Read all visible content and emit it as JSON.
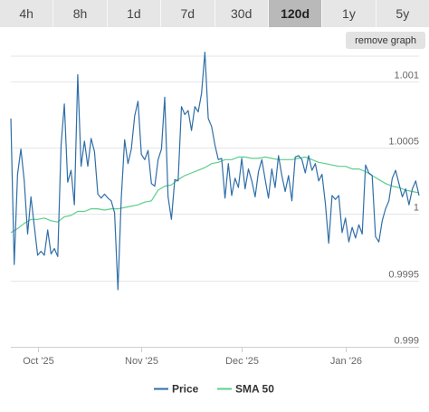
{
  "tabs": [
    {
      "label": "4h",
      "active": false
    },
    {
      "label": "8h",
      "active": false
    },
    {
      "label": "1d",
      "active": false
    },
    {
      "label": "7d",
      "active": false
    },
    {
      "label": "30d",
      "active": false
    },
    {
      "label": "120d",
      "active": true
    },
    {
      "label": "1y",
      "active": false
    },
    {
      "label": "5y",
      "active": false
    }
  ],
  "remove_graph_label": "remove graph",
  "chart_data": {
    "type": "line",
    "xlabel": "",
    "ylabel": "",
    "x_ticks": [
      {
        "label": "Oct '25",
        "date": "2025-10-01"
      },
      {
        "label": "Nov '25",
        "date": "2025-11-01"
      },
      {
        "label": "Dec '25",
        "date": "2025-12-01"
      },
      {
        "label": "Jan '26",
        "date": "2026-01-01"
      }
    ],
    "y_ticks": [
      {
        "label": "1.001",
        "value": 1.001
      },
      {
        "label": "1.0005",
        "value": 1.0005
      },
      {
        "label": "1",
        "value": 1.0
      },
      {
        "label": "0.9995",
        "value": 0.9995
      },
      {
        "label": "0.999",
        "value": 0.999
      }
    ],
    "xlim": [
      "2025-09-23",
      "2026-01-23"
    ],
    "ylim": [
      0.999,
      1.00119
    ],
    "grid": "horizontal",
    "legend_position": "bottom",
    "series": [
      {
        "name": "Price",
        "color": "#2f6ea7",
        "points": [
          [
            "2025-09-23",
            1.00072
          ],
          [
            "2025-09-24",
            0.99962
          ],
          [
            "2025-09-25",
            1.0003
          ],
          [
            "2025-09-26",
            1.00049
          ],
          [
            "2025-09-27",
            1.00025
          ],
          [
            "2025-09-28",
            0.99985
          ],
          [
            "2025-09-29",
            1.00013
          ],
          [
            "2025-09-30",
            0.99991
          ],
          [
            "2025-10-01",
            0.99969
          ],
          [
            "2025-10-02",
            0.99972
          ],
          [
            "2025-10-03",
            0.99969
          ],
          [
            "2025-10-04",
            0.99988
          ],
          [
            "2025-10-05",
            0.9997
          ],
          [
            "2025-10-06",
            0.99974
          ],
          [
            "2025-10-07",
            0.99968
          ],
          [
            "2025-10-08",
            1.00052
          ],
          [
            "2025-10-09",
            1.00083
          ],
          [
            "2025-10-10",
            1.00024
          ],
          [
            "2025-10-11",
            1.00033
          ],
          [
            "2025-10-12",
            1.00007
          ],
          [
            "2025-10-13",
            1.00105
          ],
          [
            "2025-10-14",
            1.00036
          ],
          [
            "2025-10-15",
            1.00055
          ],
          [
            "2025-10-16",
            1.00036
          ],
          [
            "2025-10-17",
            1.00057
          ],
          [
            "2025-10-18",
            1.00047
          ],
          [
            "2025-10-19",
            1.00015
          ],
          [
            "2025-10-20",
            1.00012
          ],
          [
            "2025-10-21",
            1.00015
          ],
          [
            "2025-10-22",
            1.00012
          ],
          [
            "2025-10-23",
            1.0001
          ],
          [
            "2025-10-24",
            1.00001
          ],
          [
            "2025-10-25",
            0.99943
          ],
          [
            "2025-10-26",
            1.00012
          ],
          [
            "2025-10-27",
            1.00056
          ],
          [
            "2025-10-28",
            1.00038
          ],
          [
            "2025-10-29",
            1.00049
          ],
          [
            "2025-10-30",
            1.00074
          ],
          [
            "2025-10-31",
            1.00085
          ],
          [
            "2025-11-01",
            1.00045
          ],
          [
            "2025-11-02",
            1.00041
          ],
          [
            "2025-11-03",
            1.00048
          ],
          [
            "2025-11-04",
            1.00023
          ],
          [
            "2025-11-05",
            1.00021
          ],
          [
            "2025-11-06",
            1.00041
          ],
          [
            "2025-11-07",
            1.00049
          ],
          [
            "2025-11-08",
            1.00088
          ],
          [
            "2025-11-09",
            1.00013
          ],
          [
            "2025-11-10",
            0.99996
          ],
          [
            "2025-11-11",
            1.00026
          ],
          [
            "2025-11-12",
            1.00025
          ],
          [
            "2025-11-13",
            1.00081
          ],
          [
            "2025-11-14",
            1.00075
          ],
          [
            "2025-11-15",
            1.00078
          ],
          [
            "2025-11-16",
            1.00063
          ],
          [
            "2025-11-17",
            1.00081
          ],
          [
            "2025-11-18",
            1.00077
          ],
          [
            "2025-11-19",
            1.00091
          ],
          [
            "2025-11-20",
            1.00122
          ],
          [
            "2025-11-21",
            1.00072
          ],
          [
            "2025-11-22",
            1.00066
          ],
          [
            "2025-11-23",
            1.00052
          ],
          [
            "2025-11-24",
            1.00041
          ],
          [
            "2025-11-25",
            1.00042
          ],
          [
            "2025-11-26",
            1.00012
          ],
          [
            "2025-11-27",
            1.00038
          ],
          [
            "2025-11-28",
            1.00014
          ],
          [
            "2025-11-29",
            1.00027
          ],
          [
            "2025-11-30",
            1.0002
          ],
          [
            "2025-12-01",
            1.00042
          ],
          [
            "2025-12-02",
            1.00019
          ],
          [
            "2025-12-03",
            1.00034
          ],
          [
            "2025-12-04",
            1.00025
          ],
          [
            "2025-12-05",
            1.00013
          ],
          [
            "2025-12-06",
            1.00032
          ],
          [
            "2025-12-07",
            1.00041
          ],
          [
            "2025-12-08",
            1.00026
          ],
          [
            "2025-12-09",
            1.00012
          ],
          [
            "2025-12-10",
            1.00034
          ],
          [
            "2025-12-11",
            1.0002
          ],
          [
            "2025-12-12",
            1.00044
          ],
          [
            "2025-12-13",
            1.00029
          ],
          [
            "2025-12-14",
            1.00017
          ],
          [
            "2025-12-15",
            1.00029
          ],
          [
            "2025-12-16",
            1.0001
          ],
          [
            "2025-12-17",
            1.00043
          ],
          [
            "2025-12-18",
            1.00044
          ],
          [
            "2025-12-19",
            1.00041
          ],
          [
            "2025-12-20",
            1.00031
          ],
          [
            "2025-12-21",
            1.00044
          ],
          [
            "2025-12-22",
            1.00033
          ],
          [
            "2025-12-23",
            1.00038
          ],
          [
            "2025-12-24",
            1.00025
          ],
          [
            "2025-12-25",
            1.0003
          ],
          [
            "2025-12-26",
            1.00008
          ],
          [
            "2025-12-27",
            0.99978
          ],
          [
            "2025-12-28",
            1.00014
          ],
          [
            "2025-12-29",
            1.00011
          ],
          [
            "2025-12-30",
            1.00014
          ],
          [
            "2025-12-31",
            0.99986
          ],
          [
            "2026-01-01",
            0.99997
          ],
          [
            "2026-01-02",
            0.99979
          ],
          [
            "2026-01-03",
            0.9999
          ],
          [
            "2026-01-04",
            0.99982
          ],
          [
            "2026-01-05",
            0.99992
          ],
          [
            "2026-01-06",
            0.99985
          ],
          [
            "2026-01-07",
            1.00037
          ],
          [
            "2026-01-08",
            1.00031
          ],
          [
            "2026-01-09",
            1.00029
          ],
          [
            "2026-01-10",
            0.99983
          ],
          [
            "2026-01-11",
            0.99979
          ],
          [
            "2026-01-12",
            0.99995
          ],
          [
            "2026-01-13",
            1.00004
          ],
          [
            "2026-01-14",
            1.0001
          ],
          [
            "2026-01-15",
            1.00027
          ],
          [
            "2026-01-16",
            1.00033
          ],
          [
            "2026-01-17",
            1.00023
          ],
          [
            "2026-01-18",
            1.00013
          ],
          [
            "2026-01-19",
            1.00019
          ],
          [
            "2026-01-20",
            1.00007
          ],
          [
            "2026-01-21",
            1.00019
          ],
          [
            "2026-01-22",
            1.00025
          ],
          [
            "2026-01-23",
            1.00014
          ]
        ]
      },
      {
        "name": "SMA 50",
        "color": "#5ccf8b",
        "points": [
          [
            "2025-09-23",
            0.99986
          ],
          [
            "2025-09-25",
            0.99989
          ],
          [
            "2025-09-27",
            0.99993
          ],
          [
            "2025-09-29",
            0.99996
          ],
          [
            "2025-10-01",
            0.99996
          ],
          [
            "2025-10-03",
            0.99997
          ],
          [
            "2025-10-05",
            0.99995
          ],
          [
            "2025-10-07",
            0.99994
          ],
          [
            "2025-10-09",
            0.99998
          ],
          [
            "2025-10-11",
            0.99999
          ],
          [
            "2025-10-13",
            1.00002
          ],
          [
            "2025-10-15",
            1.00002
          ],
          [
            "2025-10-17",
            1.00004
          ],
          [
            "2025-10-19",
            1.00004
          ],
          [
            "2025-10-21",
            1.00003
          ],
          [
            "2025-10-23",
            1.00004
          ],
          [
            "2025-10-25",
            1.00004
          ],
          [
            "2025-10-27",
            1.00005
          ],
          [
            "2025-10-29",
            1.00006
          ],
          [
            "2025-10-31",
            1.00007
          ],
          [
            "2025-11-02",
            1.00009
          ],
          [
            "2025-11-04",
            1.0001
          ],
          [
            "2025-11-06",
            1.00018
          ],
          [
            "2025-11-08",
            1.00021
          ],
          [
            "2025-11-10",
            1.00022
          ],
          [
            "2025-11-12",
            1.00026
          ],
          [
            "2025-11-14",
            1.00029
          ],
          [
            "2025-11-16",
            1.00031
          ],
          [
            "2025-11-18",
            1.00033
          ],
          [
            "2025-11-20",
            1.00035
          ],
          [
            "2025-11-22",
            1.00038
          ],
          [
            "2025-11-24",
            1.00039
          ],
          [
            "2025-11-26",
            1.00041
          ],
          [
            "2025-11-28",
            1.00041
          ],
          [
            "2025-11-30",
            1.00043
          ],
          [
            "2025-12-02",
            1.00043
          ],
          [
            "2025-12-04",
            1.00042
          ],
          [
            "2025-12-06",
            1.00042
          ],
          [
            "2025-12-08",
            1.00043
          ],
          [
            "2025-12-10",
            1.00042
          ],
          [
            "2025-12-12",
            1.00041
          ],
          [
            "2025-12-14",
            1.00041
          ],
          [
            "2025-12-16",
            1.00041
          ],
          [
            "2025-12-18",
            1.00042
          ],
          [
            "2025-12-20",
            1.00043
          ],
          [
            "2025-12-22",
            1.00041
          ],
          [
            "2025-12-24",
            1.00039
          ],
          [
            "2025-12-26",
            1.00038
          ],
          [
            "2025-12-28",
            1.00037
          ],
          [
            "2025-12-30",
            1.00036
          ],
          [
            "2026-01-01",
            1.00036
          ],
          [
            "2026-01-03",
            1.00034
          ],
          [
            "2026-01-05",
            1.00034
          ],
          [
            "2026-01-07",
            1.00032
          ],
          [
            "2026-01-09",
            1.00029
          ],
          [
            "2026-01-11",
            1.00026
          ],
          [
            "2026-01-13",
            1.00023
          ],
          [
            "2026-01-15",
            1.00021
          ],
          [
            "2026-01-17",
            1.0002
          ],
          [
            "2026-01-19",
            1.00018
          ],
          [
            "2026-01-21",
            1.00017
          ],
          [
            "2026-01-23",
            1.00016
          ]
        ]
      }
    ]
  }
}
